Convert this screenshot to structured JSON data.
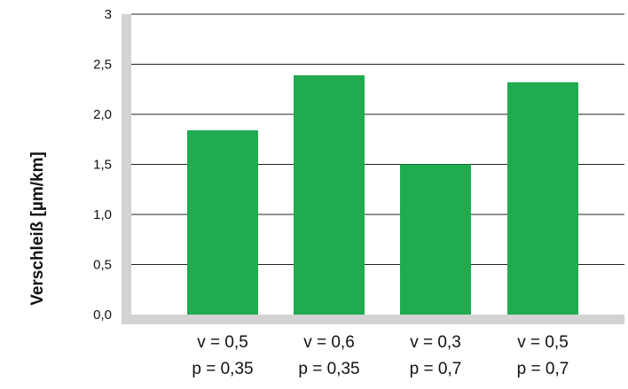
{
  "chart_data": {
    "type": "bar",
    "ylabel": "Verschleiß [µm/km]",
    "ylim": [
      0,
      3
    ],
    "yticks": [
      {
        "value": 0,
        "label": "0,0"
      },
      {
        "value": 0.5,
        "label": "0,5"
      },
      {
        "value": 1.0,
        "label": "1,0"
      },
      {
        "value": 1.5,
        "label": "1,5"
      },
      {
        "value": 2.0,
        "label": "2,0"
      },
      {
        "value": 2.5,
        "label": "2,5"
      },
      {
        "value": 3,
        "label": "3"
      }
    ],
    "categories": [
      {
        "line1": "v = 0,5",
        "line2": "p = 0,35"
      },
      {
        "line1": "v = 0,6",
        "line2": "p = 0,35"
      },
      {
        "line1": "v = 0,3",
        "line2": "p = 0,7"
      },
      {
        "line1": "v = 0,5",
        "line2": "p = 0,7"
      }
    ],
    "values": [
      1.84,
      2.39,
      1.5,
      2.32
    ],
    "grid": true,
    "colors": {
      "bar": "#1fab4e",
      "axis": "#d3d3d3",
      "grid": "#222222"
    }
  }
}
